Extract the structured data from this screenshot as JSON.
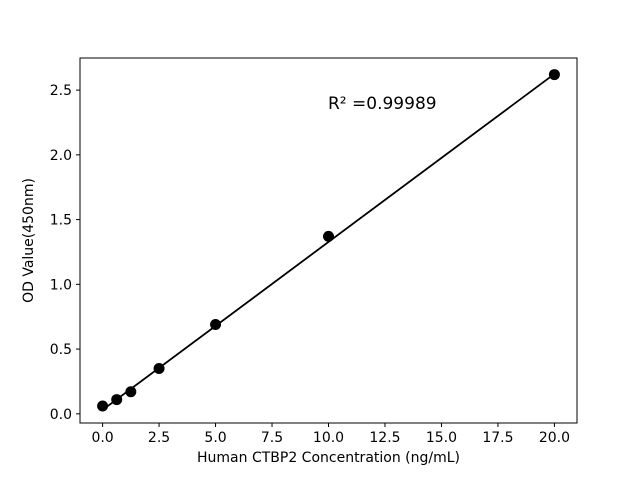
{
  "figure": {
    "background": "#ffffff"
  },
  "chart_data": {
    "type": "scatter",
    "title": "",
    "xlabel": "Human CTBP2 Concentration (ng/mL)",
    "ylabel": "OD Value(450nm)",
    "annotation": "R² =0.99989",
    "series": [
      {
        "name": "standard-points",
        "type": "scatter",
        "x": [
          0,
          0.625,
          1.25,
          2.5,
          5,
          10,
          20
        ],
        "y": [
          0.06,
          0.11,
          0.17,
          0.35,
          0.69,
          1.37,
          2.62
        ]
      },
      {
        "name": "linear-fit",
        "type": "line",
        "x": [
          0,
          20
        ],
        "y": [
          0.03,
          2.625
        ]
      }
    ],
    "x_ticks": {
      "values": [
        0,
        2.5,
        5,
        7.5,
        10,
        12.5,
        15,
        17.5,
        20
      ],
      "labels": [
        "0.0",
        "2.5",
        "5.0",
        "7.5",
        "10.0",
        "12.5",
        "15.0",
        "17.5",
        "20.0"
      ]
    },
    "y_ticks": {
      "values": [
        0,
        0.5,
        1,
        1.5,
        2,
        2.5
      ],
      "labels": [
        "0.0",
        "0.5",
        "1.0",
        "1.5",
        "2.0",
        "2.5"
      ]
    },
    "xlim": [
      -1,
      21
    ],
    "ylim": [
      -0.071,
      2.748
    ],
    "grid": false,
    "legend": null,
    "colors": {
      "marker": "#000000",
      "line": "#000000",
      "text": "#000000",
      "background": "#ffffff",
      "spine": "#000000"
    }
  }
}
